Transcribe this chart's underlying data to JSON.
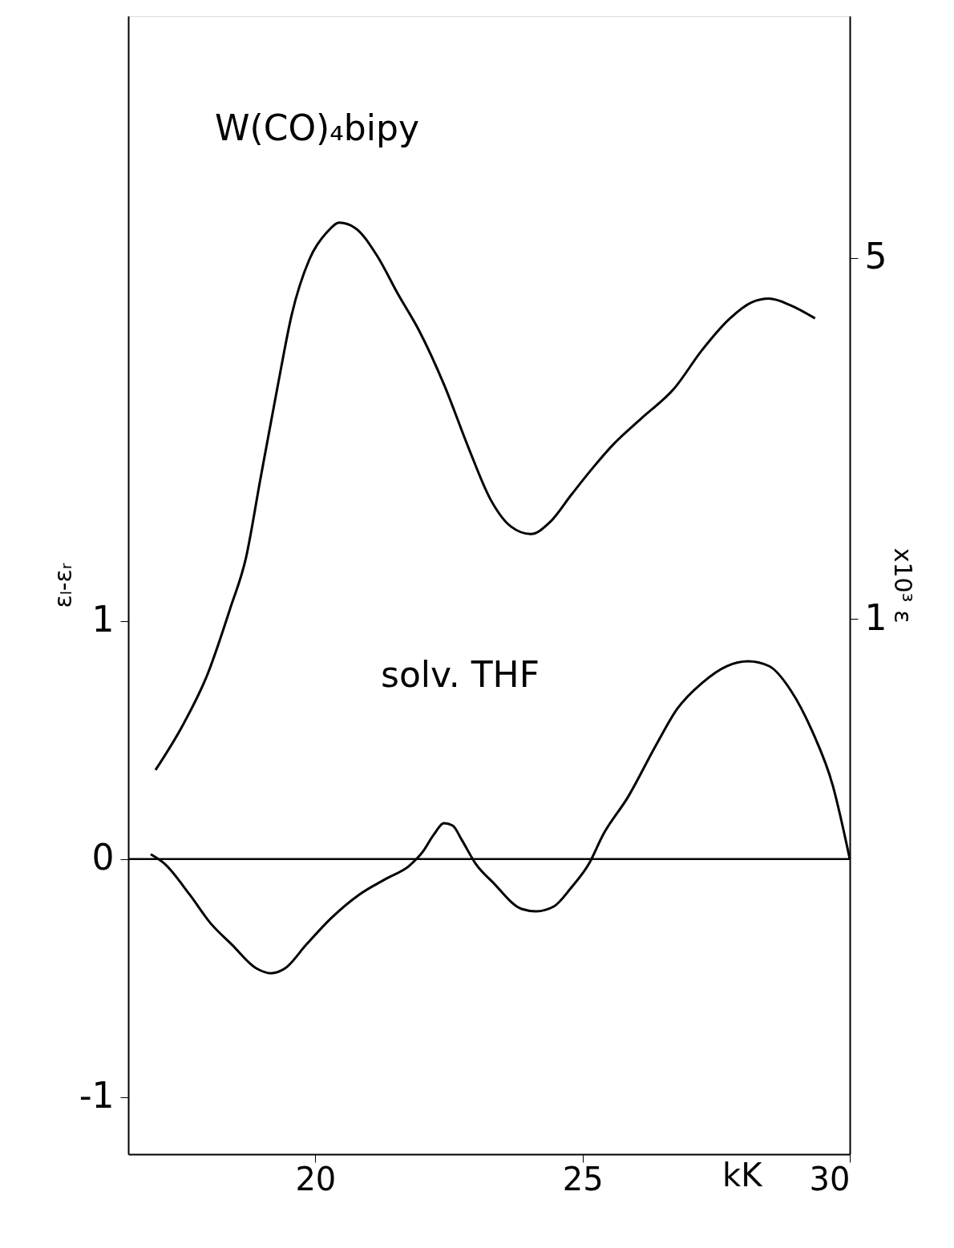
{
  "chart_data": {
    "type": "line",
    "xlabel": "kK",
    "ylabel": "εₗ-εᵣ",
    "y2label": "x10³ ε",
    "annotations": [
      "W(CO)₄bipy",
      "solv. THF"
    ],
    "xlim": [
      16.5,
      30
    ],
    "xticks": [
      20,
      25,
      30
    ],
    "ylim": [
      -1.24,
      3.54
    ],
    "yticks": [
      -1,
      0,
      1
    ],
    "y2lim": [
      0.092,
      14.7
    ],
    "y2ticks": [
      1,
      5
    ],
    "log": "y2",
    "grid": false,
    "marker": "none",
    "line_style": "solid",
    "ref_lines": [
      {
        "axis": "y",
        "value": 0,
        "color": "#000000"
      }
    ],
    "series": [
      {
        "axis": "y2",
        "color": "#000000",
        "x": [
          17.01,
          17.51,
          17.98,
          18.41,
          18.7,
          18.97,
          19.3,
          19.56,
          19.89,
          20.22,
          20.45,
          20.75,
          21.15,
          21.55,
          21.94,
          22.41,
          22.87,
          23.27,
          23.66,
          24.03,
          24.39,
          24.79,
          25.19,
          25.58,
          26.11,
          26.71,
          27.24,
          27.76,
          28.16,
          28.49,
          28.89,
          29.35
        ],
        "values": [
          0.51,
          0.62,
          0.78,
          1.05,
          1.31,
          1.86,
          2.84,
          3.89,
          4.97,
          5.61,
          5.85,
          5.71,
          5.06,
          4.25,
          3.62,
          2.84,
          2.14,
          1.71,
          1.51,
          1.46,
          1.54,
          1.74,
          1.96,
          2.18,
          2.45,
          2.79,
          3.32,
          3.82,
          4.1,
          4.17,
          4.05,
          3.82
        ]
      },
      {
        "axis": "y",
        "color": "#000000",
        "x": [
          16.92,
          17.18,
          17.65,
          18.04,
          18.44,
          18.9,
          19.17,
          19.43,
          19.83,
          20.29,
          20.82,
          21.35,
          21.75,
          22.01,
          22.21,
          22.41,
          22.57,
          22.74,
          23.0,
          23.33,
          23.86,
          24.13,
          24.46,
          24.79,
          25.12,
          25.38,
          25.85,
          26.38,
          26.77,
          27.24,
          27.7,
          28.1,
          28.49,
          28.89,
          29.29,
          29.68,
          30.0
        ],
        "values": [
          0.02,
          -0.02,
          -0.15,
          -0.27,
          -0.36,
          -0.46,
          -0.48,
          -0.46,
          -0.36,
          -0.25,
          -0.15,
          -0.08,
          -0.03,
          0.03,
          0.1,
          0.15,
          0.14,
          0.08,
          -0.02,
          -0.1,
          -0.21,
          -0.22,
          -0.2,
          -0.12,
          -0.02,
          0.1,
          0.26,
          0.48,
          0.63,
          0.74,
          0.81,
          0.83,
          0.81,
          0.71,
          0.54,
          0.31,
          0.0
        ]
      }
    ]
  }
}
